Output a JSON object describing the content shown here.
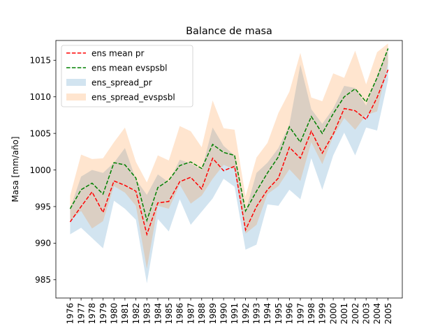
{
  "chart_data": {
    "type": "line",
    "title": "Balance de masa",
    "xlabel": "",
    "ylabel": "Masa [mm/año]",
    "ylim": [
      982.5,
      1017.7
    ],
    "yticks": [
      985,
      990,
      995,
      1000,
      1005,
      1010,
      1015
    ],
    "grid": false,
    "legend_position": "top-left",
    "x": [
      1976,
      1977,
      1978,
      1979,
      1980,
      1981,
      1982,
      1983,
      1984,
      1985,
      1986,
      1987,
      1988,
      1989,
      1990,
      1991,
      1992,
      1993,
      1994,
      1995,
      1996,
      1997,
      1998,
      1999,
      2000,
      2001,
      2002,
      2003,
      2004,
      2005
    ],
    "series": [
      {
        "name": "ens mean pr",
        "kind": "line",
        "style": "dashed",
        "color": "#ff0000",
        "values": [
          992.9,
          995.0,
          997.0,
          994.2,
          998.5,
          997.9,
          997.1,
          991.2,
          995.5,
          995.7,
          998.4,
          999.0,
          997.4,
          1001.6,
          999.9,
          1000.5,
          991.8,
          995.0,
          997.3,
          998.9,
          1003.1,
          1001.6,
          1005.3,
          1002.3,
          1004.9,
          1008.4,
          1008.1,
          1006.9,
          1009.9,
          1013.7
        ]
      },
      {
        "name": "ens mean evspsbl",
        "kind": "line",
        "style": "dashed",
        "color": "#008000",
        "values": [
          994.7,
          997.3,
          998.2,
          996.7,
          1001.0,
          1000.7,
          998.9,
          993.1,
          997.6,
          998.6,
          1000.6,
          1001.1,
          1000.2,
          1003.5,
          1002.4,
          1002.0,
          994.4,
          997.1,
          999.6,
          1001.8,
          1005.9,
          1003.8,
          1007.3,
          1005.0,
          1007.7,
          1010.0,
          1011.1,
          1009.3,
          1012.6,
          1016.6
        ]
      },
      {
        "name": "ens_spread_pr",
        "kind": "band",
        "color": "#1f77b4",
        "opacity": 0.2,
        "lower": [
          991.2,
          992.1,
          990.7,
          989.3,
          995.8,
          994.7,
          993.2,
          984.5,
          993.3,
          991.6,
          996.0,
          992.5,
          994.3,
          996.1,
          998.8,
          997.7,
          989.1,
          989.8,
          995.3,
          995.1,
          997.3,
          996.0,
          1001.6,
          997.3,
          1002.0,
          1005.1,
          1002.0,
          1005.8,
          1005.4,
          1012.3
        ],
        "upper": [
          994.7,
          999.1,
          1000.0,
          999.6,
          1001.0,
          1003.0,
          998.7,
          996.6,
          999.4,
          998.3,
          1001.4,
          1000.9,
          1000.0,
          1005.8,
          1003.3,
          1002.0,
          994.3,
          999.6,
          1001.0,
          1003.0,
          1006.2,
          1014.4,
          1008.3,
          1006.3,
          1008.4,
          1011.5,
          1011.2,
          1008.8,
          1012.9,
          1016.6
        ]
      },
      {
        "name": "ens_spread_evspsbl",
        "kind": "band",
        "color": "#ff7f0e",
        "opacity": 0.2,
        "lower": [
          993.1,
          994.4,
          992.0,
          993.0,
          997.8,
          996.9,
          995.1,
          986.5,
          995.1,
          994.7,
          998.0,
          995.4,
          996.5,
          998.8,
          1000.7,
          1000.1,
          991.3,
          992.5,
          996.7,
          997.8,
          1000.1,
          998.5,
          1003.8,
          1000.8,
          1004.6,
          1007.1,
          1005.5,
          1007.5,
          1008.0,
          1014.6
        ],
        "upper": [
          996.5,
          1002.1,
          1001.5,
          1001.6,
          1003.8,
          1005.8,
          1001.1,
          998.3,
          1002.0,
          1001.3,
          1006.0,
          1005.3,
          1003.1,
          1009.5,
          1005.7,
          1005.5,
          996.4,
          1001.7,
          1003.7,
          1007.8,
          1010.7,
          1016.0,
          1009.9,
          1009.4,
          1013.2,
          1012.6,
          1016.3,
          1011.7,
          1016.1,
          1017.3
        ]
      }
    ]
  }
}
